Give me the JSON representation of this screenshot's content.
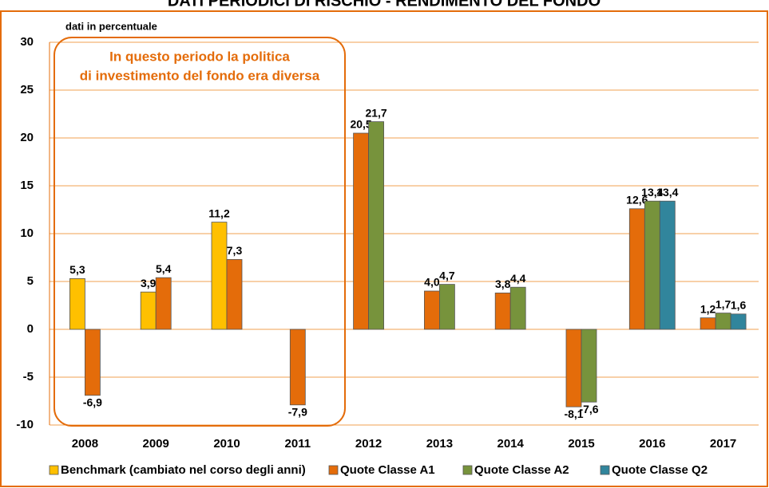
{
  "chart_data": {
    "type": "bar",
    "title": "DATI PERIODICI DI RISCHIO - RENDIMENTO DEL FONDO",
    "y_label": "dati in percentuale",
    "annotation": [
      "In questo periodo la politica",
      "di investimento del fondo era diversa"
    ],
    "categories": [
      "2008",
      "2009",
      "2010",
      "2011",
      "2012",
      "2013",
      "2014",
      "2015",
      "2016",
      "2017"
    ],
    "series": [
      {
        "name": "Benchmark (cambiato nel corso degli anni)",
        "color": "#ffc000",
        "values": [
          5.3,
          3.9,
          11.2,
          null,
          null,
          null,
          null,
          null,
          null,
          null
        ],
        "value_labels": [
          "5,3",
          "3,9",
          "11,2",
          null,
          null,
          null,
          null,
          null,
          null,
          null
        ]
      },
      {
        "name": "Quote Classe A1",
        "color": "#e46c0a",
        "values": [
          -6.9,
          5.4,
          7.3,
          -7.9,
          20.5,
          4.0,
          3.8,
          -8.1,
          12.6,
          1.2
        ],
        "value_labels": [
          "-6,9",
          "5,4",
          "7,3",
          "-7,9",
          "20,5",
          "4,0",
          "3,8",
          "-8,1",
          "12,6",
          "1,2"
        ]
      },
      {
        "name": "Quote Classe A2",
        "color": "#77933c",
        "values": [
          null,
          null,
          null,
          null,
          21.7,
          4.7,
          4.4,
          -7.6,
          13.4,
          1.7
        ],
        "value_labels": [
          null,
          null,
          null,
          null,
          "21,7",
          "4,7",
          "4,4",
          "-7,6",
          "13,4",
          "1,7"
        ]
      },
      {
        "name": "Quote Classe Q2",
        "color": "#31859c",
        "values": [
          null,
          null,
          null,
          null,
          null,
          null,
          null,
          null,
          13.4,
          1.6
        ],
        "value_labels": [
          null,
          null,
          null,
          null,
          null,
          null,
          null,
          null,
          "13,4",
          "1,6"
        ]
      }
    ],
    "ylim": [
      -10,
      30
    ],
    "yticks": [
      -10,
      -5,
      0,
      5,
      10,
      15,
      20,
      25,
      30
    ],
    "grid": true
  }
}
